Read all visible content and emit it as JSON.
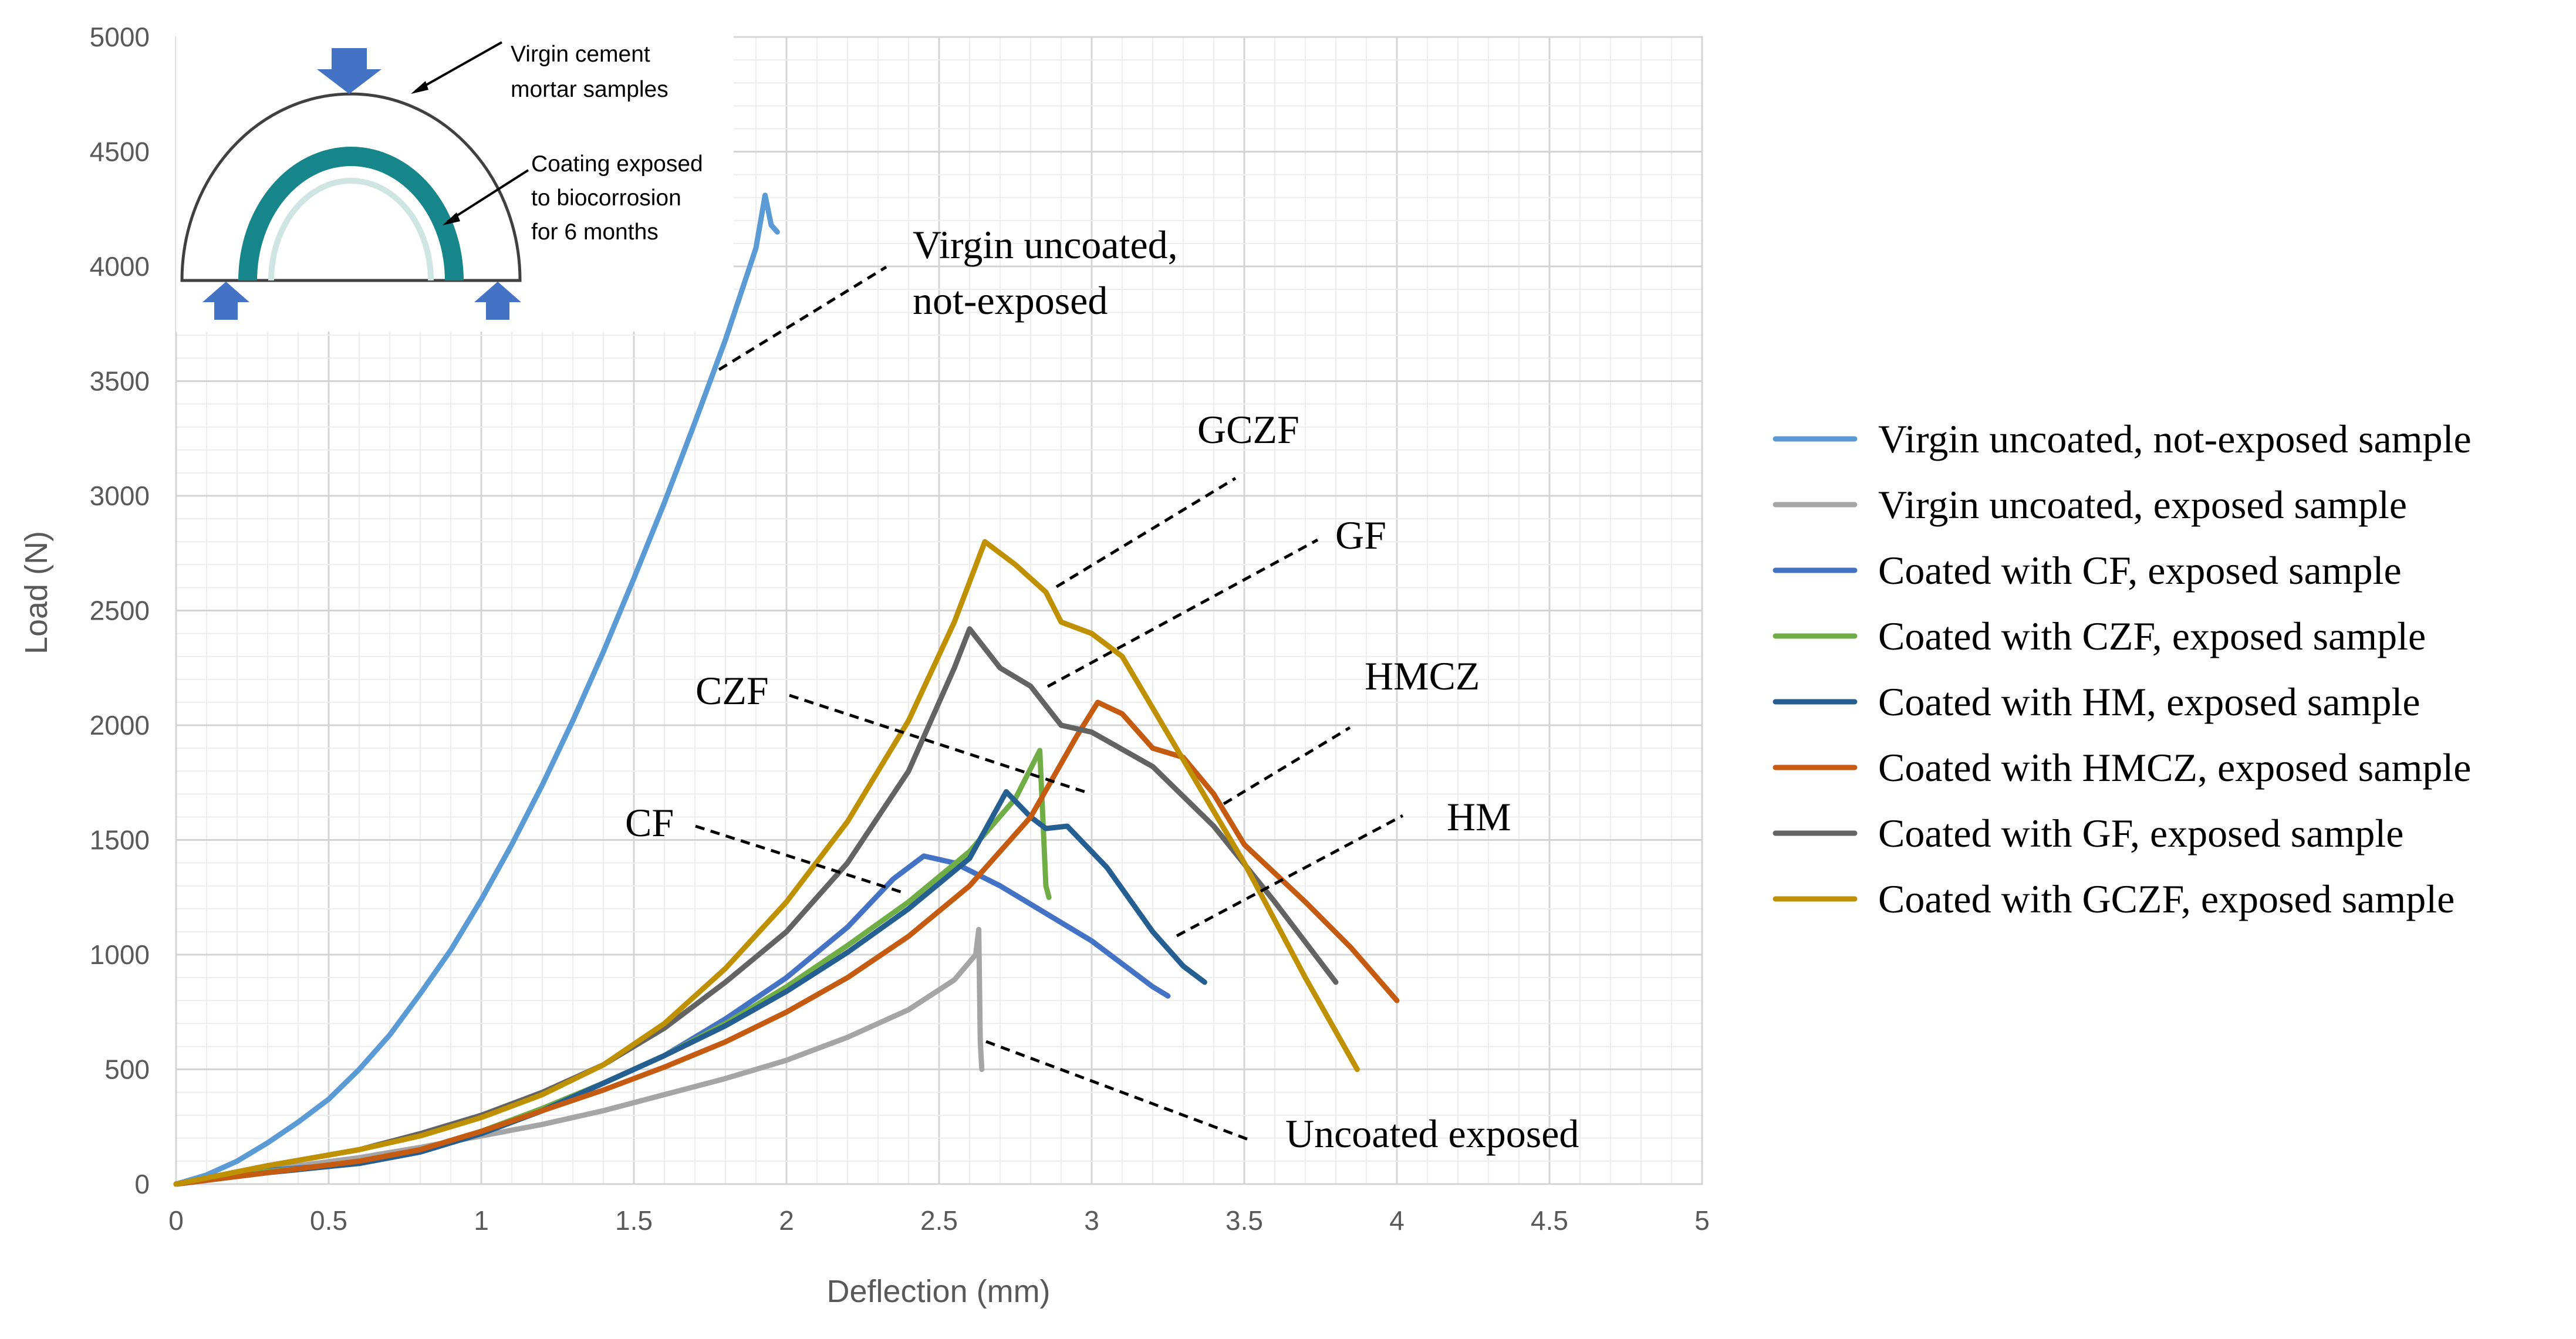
{
  "chart_data": {
    "type": "line",
    "title": "",
    "xlabel": "Deflection (mm)",
    "ylabel": "Load (N)",
    "xlim": [
      0,
      5
    ],
    "ylim": [
      0,
      5000
    ],
    "x_ticks": [
      "0",
      "0.5",
      "1",
      "1.5",
      "2",
      "2.5",
      "3",
      "3.5",
      "4",
      "4.5",
      "5"
    ],
    "y_ticks": [
      "0",
      "500",
      "1000",
      "1500",
      "2000",
      "2500",
      "3000",
      "3500",
      "4000",
      "4500",
      "5000"
    ],
    "grid": true,
    "legend_position": "right",
    "series": [
      {
        "name": "Virgin uncoated, not-exposed sample",
        "color": "#5b9bd5",
        "points": [
          [
            0,
            0
          ],
          [
            0.1,
            40
          ],
          [
            0.2,
            100
          ],
          [
            0.3,
            180
          ],
          [
            0.4,
            270
          ],
          [
            0.5,
            370
          ],
          [
            0.6,
            500
          ],
          [
            0.7,
            650
          ],
          [
            0.8,
            830
          ],
          [
            0.9,
            1020
          ],
          [
            1.0,
            1240
          ],
          [
            1.1,
            1480
          ],
          [
            1.2,
            1740
          ],
          [
            1.3,
            2020
          ],
          [
            1.4,
            2320
          ],
          [
            1.5,
            2640
          ],
          [
            1.6,
            2970
          ],
          [
            1.7,
            3320
          ],
          [
            1.8,
            3680
          ],
          [
            1.9,
            4080
          ],
          [
            1.93,
            4310
          ],
          [
            1.95,
            4180
          ],
          [
            1.97,
            4150
          ]
        ]
      },
      {
        "name": "Virgin uncoated, exposed sample",
        "color": "#a5a5a5",
        "points": [
          [
            0,
            0
          ],
          [
            0.2,
            40
          ],
          [
            0.4,
            80
          ],
          [
            0.6,
            115
          ],
          [
            0.8,
            160
          ],
          [
            1.0,
            210
          ],
          [
            1.2,
            260
          ],
          [
            1.4,
            320
          ],
          [
            1.6,
            390
          ],
          [
            1.8,
            460
          ],
          [
            2.0,
            540
          ],
          [
            2.2,
            640
          ],
          [
            2.4,
            760
          ],
          [
            2.55,
            890
          ],
          [
            2.62,
            1000
          ],
          [
            2.63,
            1110
          ],
          [
            2.635,
            620
          ],
          [
            2.64,
            500
          ]
        ]
      },
      {
        "name": "Coated with CF, exposed sample",
        "color": "#4472c4",
        "points": [
          [
            0,
            0
          ],
          [
            0.3,
            60
          ],
          [
            0.6,
            90
          ],
          [
            0.8,
            140
          ],
          [
            1.0,
            220
          ],
          [
            1.2,
            320
          ],
          [
            1.4,
            440
          ],
          [
            1.6,
            560
          ],
          [
            1.8,
            720
          ],
          [
            2.0,
            900
          ],
          [
            2.2,
            1120
          ],
          [
            2.35,
            1330
          ],
          [
            2.45,
            1430
          ],
          [
            2.55,
            1400
          ],
          [
            2.7,
            1300
          ],
          [
            2.85,
            1180
          ],
          [
            3.0,
            1060
          ],
          [
            3.1,
            960
          ],
          [
            3.2,
            860
          ],
          [
            3.25,
            820
          ]
        ]
      },
      {
        "name": "Coated with CZF, exposed sample",
        "color": "#70ad47",
        "points": [
          [
            0,
            0
          ],
          [
            0.3,
            55
          ],
          [
            0.6,
            90
          ],
          [
            0.8,
            150
          ],
          [
            1.0,
            230
          ],
          [
            1.2,
            330
          ],
          [
            1.4,
            440
          ],
          [
            1.6,
            560
          ],
          [
            1.8,
            700
          ],
          [
            2.0,
            860
          ],
          [
            2.2,
            1040
          ],
          [
            2.4,
            1230
          ],
          [
            2.6,
            1450
          ],
          [
            2.75,
            1680
          ],
          [
            2.83,
            1890
          ],
          [
            2.85,
            1300
          ],
          [
            2.86,
            1250
          ]
        ]
      },
      {
        "name": "Coated with HM, exposed sample",
        "color": "#255e91",
        "points": [
          [
            0,
            0
          ],
          [
            0.3,
            50
          ],
          [
            0.6,
            90
          ],
          [
            0.8,
            140
          ],
          [
            1.0,
            220
          ],
          [
            1.2,
            320
          ],
          [
            1.4,
            440
          ],
          [
            1.6,
            560
          ],
          [
            1.8,
            690
          ],
          [
            2.0,
            840
          ],
          [
            2.2,
            1010
          ],
          [
            2.4,
            1200
          ],
          [
            2.6,
            1420
          ],
          [
            2.72,
            1710
          ],
          [
            2.8,
            1600
          ],
          [
            2.85,
            1550
          ],
          [
            2.92,
            1560
          ],
          [
            3.05,
            1380
          ],
          [
            3.2,
            1100
          ],
          [
            3.3,
            950
          ],
          [
            3.37,
            880
          ]
        ]
      },
      {
        "name": "Coated with HMCZ, exposed sample",
        "color": "#c55a11",
        "points": [
          [
            0,
            0
          ],
          [
            0.3,
            50
          ],
          [
            0.6,
            100
          ],
          [
            0.8,
            150
          ],
          [
            1.0,
            230
          ],
          [
            1.2,
            320
          ],
          [
            1.4,
            410
          ],
          [
            1.6,
            510
          ],
          [
            1.8,
            620
          ],
          [
            2.0,
            750
          ],
          [
            2.2,
            900
          ],
          [
            2.4,
            1080
          ],
          [
            2.6,
            1300
          ],
          [
            2.8,
            1600
          ],
          [
            2.95,
            1950
          ],
          [
            3.02,
            2100
          ],
          [
            3.1,
            2050
          ],
          [
            3.2,
            1900
          ],
          [
            3.3,
            1860
          ],
          [
            3.4,
            1700
          ],
          [
            3.5,
            1480
          ],
          [
            3.7,
            1230
          ],
          [
            3.85,
            1030
          ],
          [
            4.0,
            800
          ]
        ]
      },
      {
        "name": "Coated with GF, exposed sample",
        "color": "#636363",
        "points": [
          [
            0,
            0
          ],
          [
            0.3,
            80
          ],
          [
            0.6,
            150
          ],
          [
            0.8,
            220
          ],
          [
            1.0,
            300
          ],
          [
            1.2,
            400
          ],
          [
            1.4,
            520
          ],
          [
            1.6,
            680
          ],
          [
            1.8,
            880
          ],
          [
            2.0,
            1100
          ],
          [
            2.2,
            1400
          ],
          [
            2.4,
            1800
          ],
          [
            2.55,
            2250
          ],
          [
            2.6,
            2420
          ],
          [
            2.7,
            2250
          ],
          [
            2.8,
            2170
          ],
          [
            2.9,
            2000
          ],
          [
            3.0,
            1970
          ],
          [
            3.2,
            1820
          ],
          [
            3.4,
            1560
          ],
          [
            3.6,
            1230
          ],
          [
            3.8,
            880
          ]
        ]
      },
      {
        "name": "Coated with GCZF, exposed sample",
        "color": "#bf9000",
        "points": [
          [
            0,
            0
          ],
          [
            0.3,
            80
          ],
          [
            0.6,
            150
          ],
          [
            0.8,
            210
          ],
          [
            1.0,
            290
          ],
          [
            1.2,
            390
          ],
          [
            1.4,
            520
          ],
          [
            1.6,
            700
          ],
          [
            1.8,
            940
          ],
          [
            2.0,
            1230
          ],
          [
            2.2,
            1580
          ],
          [
            2.4,
            2020
          ],
          [
            2.55,
            2450
          ],
          [
            2.65,
            2800
          ],
          [
            2.75,
            2700
          ],
          [
            2.85,
            2580
          ],
          [
            2.9,
            2450
          ],
          [
            3.0,
            2400
          ],
          [
            3.1,
            2300
          ],
          [
            3.3,
            1850
          ],
          [
            3.5,
            1400
          ],
          [
            3.7,
            900
          ],
          [
            3.87,
            500
          ]
        ]
      }
    ],
    "annotations": [
      {
        "line1": "Virgin uncoated,",
        "line2": "not-exposed"
      },
      {
        "line1": "GCZF"
      },
      {
        "line1": "GF"
      },
      {
        "line1": "HMCZ"
      },
      {
        "line1": "CZF"
      },
      {
        "line1": "HM"
      },
      {
        "line1": "CF"
      },
      {
        "line1": "Uncoated exposed"
      }
    ],
    "inset": {
      "label_top_1": "Virgin cement",
      "label_top_2": "mortar samples",
      "label_coat_1": "Coating exposed",
      "label_coat_2": "to biocorrosion",
      "label_coat_3": "for 6 months",
      "arrow_color": "#4472c4",
      "coating_color": "#17868a"
    }
  }
}
